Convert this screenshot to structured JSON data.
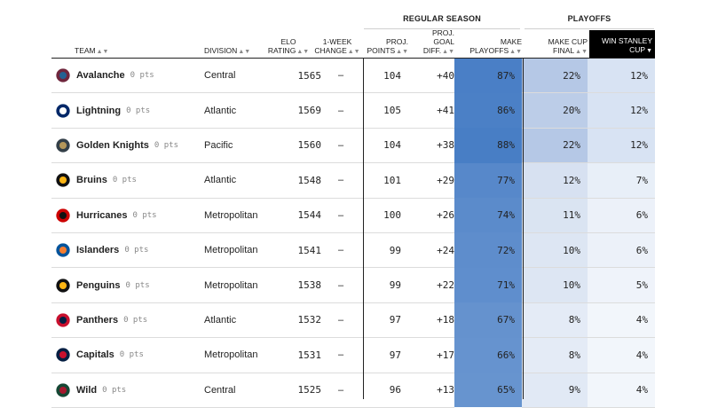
{
  "groups": {
    "regular_season": "REGULAR SEASON",
    "playoffs": "PLAYOFFS"
  },
  "headers": {
    "team": "TEAM",
    "division": "DIVISION",
    "elo": [
      "ELO",
      "RATING"
    ],
    "change": [
      "1-WEEK",
      "CHANGE"
    ],
    "proj_points": [
      "PROJ.",
      "POINTS"
    ],
    "proj_gd": [
      "PROJ.",
      "GOAL DIFF."
    ],
    "make_playoffs": [
      "MAKE",
      "PLAYOFFS"
    ],
    "make_cup_final": [
      "MAKE CUP",
      "FINAL"
    ],
    "win_cup": [
      "WIN STANLEY",
      "CUP"
    ]
  },
  "sort_indicator": "▲▼",
  "sort_active": "▼",
  "teams": [
    {
      "name": "Avalanche",
      "pts": "0 pts",
      "division": "Central",
      "elo": "1565",
      "change": "–",
      "proj_points": "104",
      "proj_gd": "+40",
      "make_playoffs": "87%",
      "make_final": "22%",
      "win_cup": "12%",
      "logo_color": "#6f263d",
      "logo_accent": "#236192"
    },
    {
      "name": "Lightning",
      "pts": "0 pts",
      "division": "Atlantic",
      "elo": "1569",
      "change": "–",
      "proj_points": "105",
      "proj_gd": "+41",
      "make_playoffs": "86%",
      "make_final": "20%",
      "win_cup": "12%",
      "logo_color": "#002868",
      "logo_accent": "#ffffff"
    },
    {
      "name": "Golden Knights",
      "pts": "0 pts",
      "division": "Pacific",
      "elo": "1560",
      "change": "–",
      "proj_points": "104",
      "proj_gd": "+38",
      "make_playoffs": "88%",
      "make_final": "22%",
      "win_cup": "12%",
      "logo_color": "#333f48",
      "logo_accent": "#b4975a"
    },
    {
      "name": "Bruins",
      "pts": "0 pts",
      "division": "Atlantic",
      "elo": "1548",
      "change": "–",
      "proj_points": "101",
      "proj_gd": "+29",
      "make_playoffs": "77%",
      "make_final": "12%",
      "win_cup": "7%",
      "logo_color": "#111111",
      "logo_accent": "#fcb514"
    },
    {
      "name": "Hurricanes",
      "pts": "0 pts",
      "division": "Metropolitan",
      "elo": "1544",
      "change": "–",
      "proj_points": "100",
      "proj_gd": "+26",
      "make_playoffs": "74%",
      "make_final": "11%",
      "win_cup": "6%",
      "logo_color": "#cc0000",
      "logo_accent": "#111111"
    },
    {
      "name": "Islanders",
      "pts": "0 pts",
      "division": "Metropolitan",
      "elo": "1541",
      "change": "–",
      "proj_points": "99",
      "proj_gd": "+24",
      "make_playoffs": "72%",
      "make_final": "10%",
      "win_cup": "6%",
      "logo_color": "#00539b",
      "logo_accent": "#f47d30"
    },
    {
      "name": "Penguins",
      "pts": "0 pts",
      "division": "Metropolitan",
      "elo": "1538",
      "change": "–",
      "proj_points": "99",
      "proj_gd": "+22",
      "make_playoffs": "71%",
      "make_final": "10%",
      "win_cup": "5%",
      "logo_color": "#111111",
      "logo_accent": "#fcb514"
    },
    {
      "name": "Panthers",
      "pts": "0 pts",
      "division": "Atlantic",
      "elo": "1532",
      "change": "–",
      "proj_points": "97",
      "proj_gd": "+18",
      "make_playoffs": "67%",
      "make_final": "8%",
      "win_cup": "4%",
      "logo_color": "#c8102e",
      "logo_accent": "#041e42"
    },
    {
      "name": "Capitals",
      "pts": "0 pts",
      "division": "Metropolitan",
      "elo": "1531",
      "change": "–",
      "proj_points": "97",
      "proj_gd": "+17",
      "make_playoffs": "66%",
      "make_final": "8%",
      "win_cup": "4%",
      "logo_color": "#041e42",
      "logo_accent": "#c8102e"
    },
    {
      "name": "Wild",
      "pts": "0 pts",
      "division": "Central",
      "elo": "1525",
      "change": "–",
      "proj_points": "96",
      "proj_gd": "+13",
      "make_playoffs": "65%",
      "make_final": "9%",
      "win_cup": "4%",
      "logo_color": "#154734",
      "logo_accent": "#a6192e"
    }
  ],
  "colors": {
    "playoffs_base": "#4a7fc6",
    "final_base": "#9fb8de",
    "cup_base": "#c9d8ef"
  }
}
